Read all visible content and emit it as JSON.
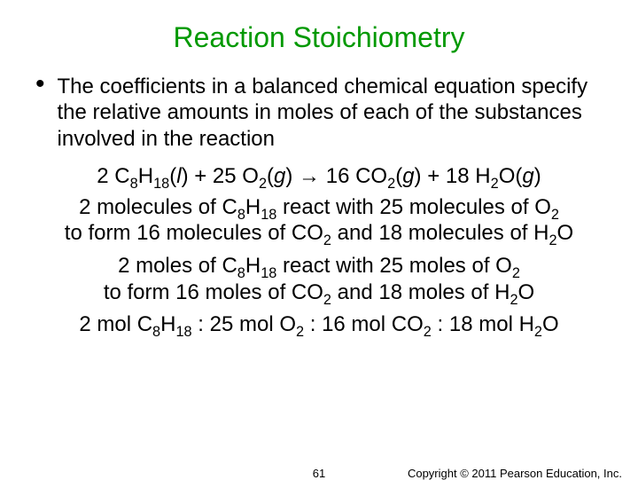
{
  "title": {
    "text": "Reaction Stoichiometry",
    "color": "#009900"
  },
  "bullet": {
    "text": "The coefficients in a balanced chemical equation specify the relative amounts in moles of each of the substances involved in the reaction"
  },
  "equation": {
    "lhs1_coef": "2 C",
    "lhs1_sub1": "8",
    "lhs1_mid": "H",
    "lhs1_sub2": "18",
    "lhs1_state_open": "(",
    "lhs1_state": "l",
    "lhs1_state_close": ")",
    "plus1": " + ",
    "lhs2_coef": "25 O",
    "lhs2_sub": "2",
    "lhs2_state": "(",
    "lhs2_state_g": "g",
    "lhs2_state_close": ")",
    "arrow": " → ",
    "rhs1_coef": "16 CO",
    "rhs1_sub": "2",
    "rhs1_state": "(",
    "rhs1_state_g": "g",
    "rhs1_state_close": ")",
    "plus2": " + ",
    "rhs2_coef": "18 H",
    "rhs2_sub": "2",
    "rhs2_O": "O(",
    "rhs2_state_g": "g",
    "rhs2_state_close": ")"
  },
  "molecules": {
    "l1a": "2 molecules of C",
    "l1s1": "8",
    "l1b": "H",
    "l1s2": "18",
    "l1c": " react with 25 molecules of O",
    "l1s3": "2",
    "l2a": "to form 16 molecules of CO",
    "l2s1": "2",
    "l2b": " and 18 molecules of H",
    "l2s2": "2",
    "l2c": "O"
  },
  "moles": {
    "l1a": "2 moles of C",
    "l1s1": "8",
    "l1b": "H",
    "l1s2": "18",
    "l1c": " react with 25 moles of O",
    "l1s3": "2",
    "l2a": "to form 16 moles of CO",
    "l2s1": "2",
    "l2b": " and 18 moles of H",
    "l2s2": "2",
    "l2c": "O"
  },
  "ratio": {
    "a": "2 mol C",
    "s1": "8",
    "b": "H",
    "s2": "18",
    "c": " : 25 mol O",
    "s3": "2",
    "d": " : 16 mol CO",
    "s4": "2",
    "e": " : 18 mol H",
    "s5": "2",
    "f": "O"
  },
  "footer": {
    "page": "61",
    "copyright": "Copyright © 2011 Pearson Education, Inc."
  },
  "colors": {
    "background": "#ffffff",
    "text": "#000000",
    "title": "#009900"
  }
}
